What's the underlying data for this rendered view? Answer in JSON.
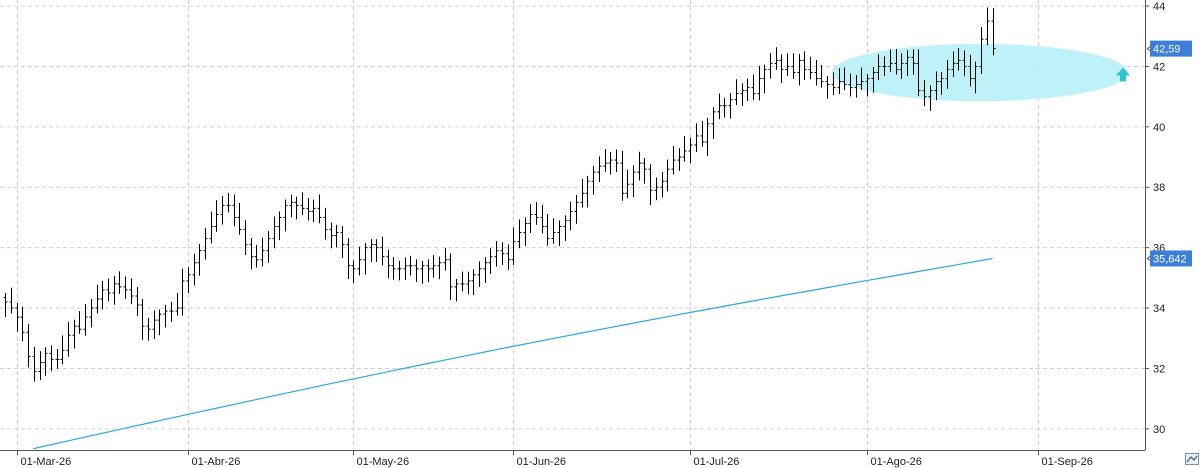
{
  "chart_data": {
    "type": "ohlc",
    "y_axis": {
      "min": 29.3,
      "max": 44.2,
      "ticks": [
        30,
        32,
        34,
        36,
        38,
        40,
        42,
        44
      ],
      "side": "right"
    },
    "x_axis": {
      "ticks": [
        {
          "label": "01-Mar-26",
          "bar_index": 2
        },
        {
          "label": "01-Abr-26",
          "bar_index": 32
        },
        {
          "label": "01-May-26",
          "bar_index": 61
        },
        {
          "label": "01-Jun-26",
          "bar_index": 89
        },
        {
          "label": "01-Jul-26",
          "bar_index": 120
        },
        {
          "label": "01-Ago-26",
          "bar_index": 151
        },
        {
          "label": "01-Sep-26",
          "bar_index": 181
        }
      ]
    },
    "grid": true,
    "price_bars_close": [
      34.2,
      34.0,
      33.7,
      33.2,
      32.4,
      31.9,
      32.2,
      32.5,
      32.3,
      32.3,
      32.6,
      33.1,
      33.4,
      33.3,
      33.7,
      34.0,
      34.3,
      34.6,
      34.5,
      34.8,
      34.7,
      34.6,
      34.4,
      34.1,
      33.4,
      33.3,
      33.6,
      33.8,
      33.9,
      33.9,
      34.0,
      34.9,
      35.1,
      35.5,
      35.9,
      36.3,
      36.7,
      37.1,
      37.4,
      37.4,
      37.0,
      36.6,
      36.1,
      35.7,
      35.6,
      35.9,
      36.3,
      36.7,
      37.0,
      37.4,
      37.5,
      37.4,
      37.3,
      37.2,
      37.3,
      37.0,
      36.6,
      36.4,
      36.5,
      36.1,
      35.4,
      35.3,
      35.6,
      36.0,
      36.1,
      36.0,
      35.7,
      35.4,
      35.3,
      35.3,
      35.4,
      35.4,
      35.3,
      35.4,
      35.3,
      35.4,
      35.5,
      35.6,
      34.7,
      34.8,
      34.8,
      34.9,
      35.1,
      35.3,
      35.5,
      35.7,
      35.9,
      35.8,
      35.6,
      36.2,
      36.5,
      36.8,
      37.1,
      37.0,
      36.7,
      36.3,
      36.5,
      36.7,
      36.9,
      37.2,
      37.5,
      37.8,
      38.2,
      38.5,
      38.7,
      38.8,
      38.9,
      38.8,
      37.8,
      38.1,
      38.5,
      38.8,
      38.6,
      37.9,
      38.0,
      38.2,
      38.6,
      38.9,
      39.0,
      39.2,
      39.4,
      39.7,
      39.5,
      40.1,
      40.5,
      40.7,
      40.7,
      40.9,
      41.1,
      41.2,
      41.3,
      41.1,
      41.6,
      41.9,
      42.1,
      42.2,
      41.9,
      42.0,
      41.8,
      42.2,
      41.9,
      41.8,
      41.6,
      41.5,
      41.4,
      41.3,
      41.5,
      41.4,
      41.3,
      41.4,
      41.5,
      41.6,
      41.8,
      42.0,
      42.0,
      42.1,
      41.9,
      42.1,
      42.3,
      42.1,
      41.2,
      41.0,
      41.2,
      41.5,
      41.6,
      41.9,
      42.1,
      42.2,
      42.0,
      41.6,
      42.0,
      42.9,
      43.5,
      42.59
    ],
    "moving_average": {
      "start": 30.0,
      "end": 35.642,
      "color": "#2aa8dc"
    },
    "last_price_label": "42,59",
    "ma_label": "35,642",
    "highlight_ellipse": {
      "color": "#b8f0f8",
      "y_center": 41.8,
      "y_span": 1.9
    },
    "arrow_color": "#2cc5c9"
  },
  "ui": {
    "corner_icon": "zoom-icon"
  }
}
